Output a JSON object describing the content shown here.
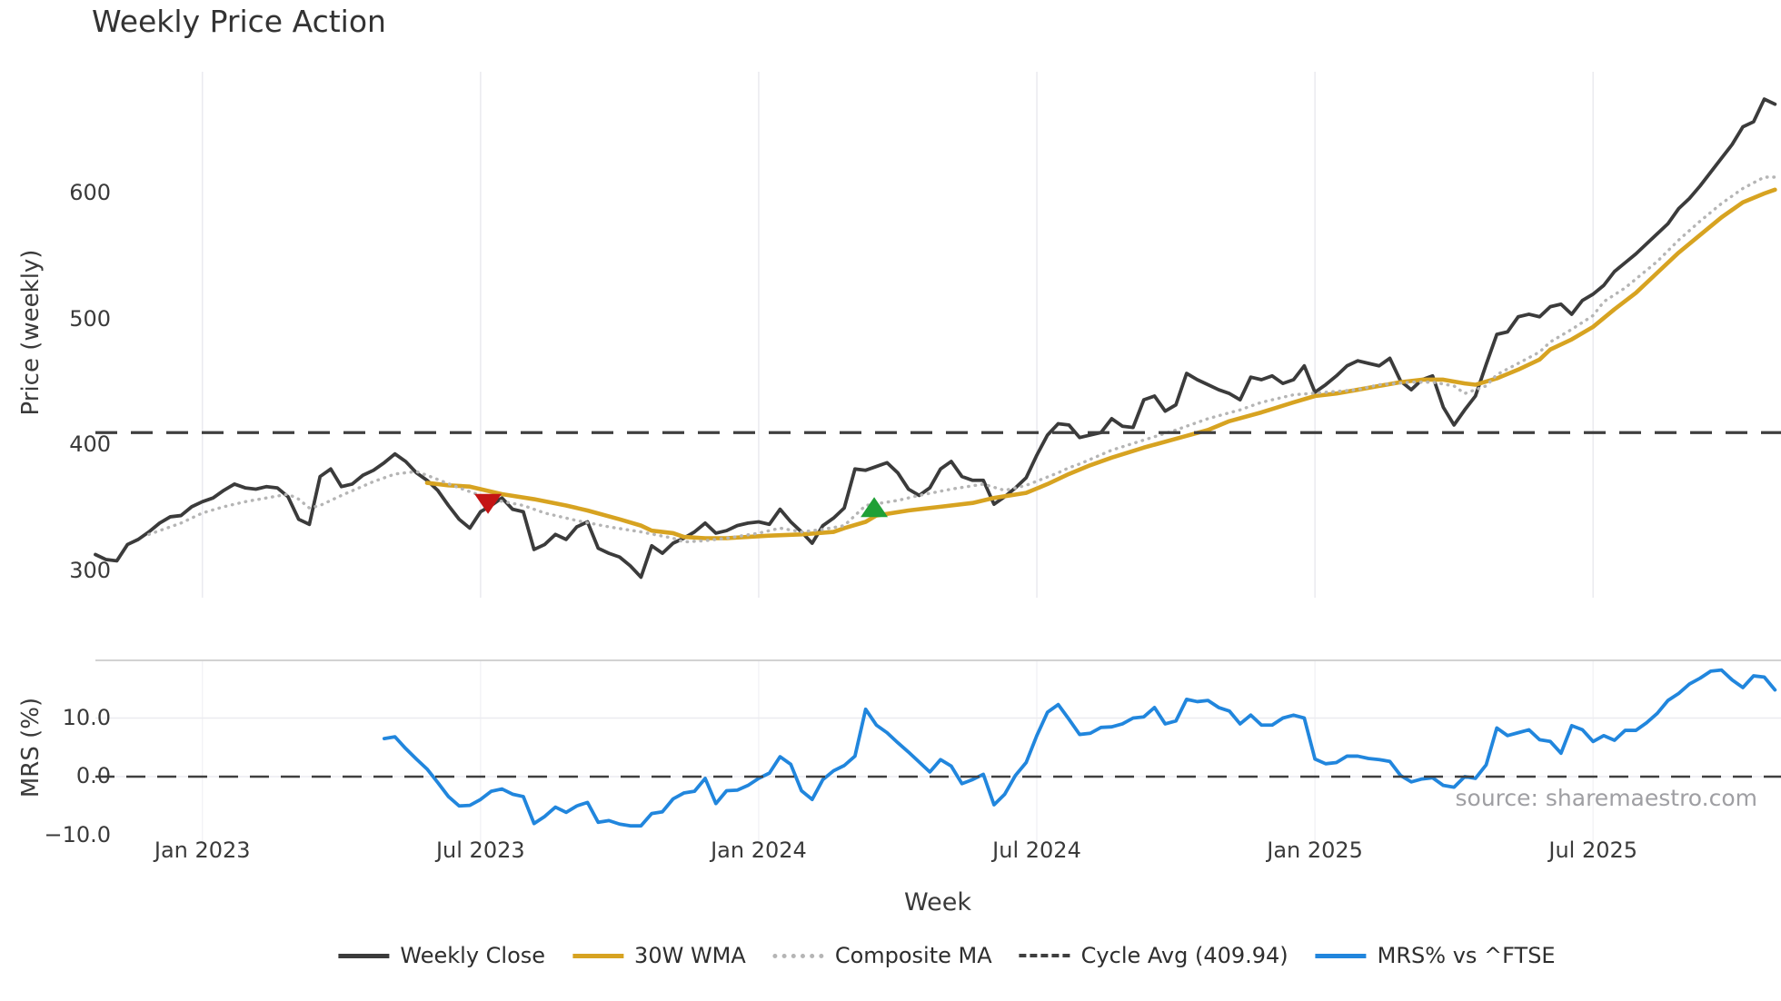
{
  "title": "Weekly Price Action",
  "watermark": "source: sharemaestro.com",
  "colors": {
    "weekly_close": "#3b3b3b",
    "wma30": "#d7a321",
    "composite_ma": "#b5b5b5",
    "cycle_avg": "#3f3f3f",
    "mrs": "#2186dd",
    "sell_marker": "#c41414",
    "buy_marker": "#1fa036",
    "grid": "#ebebf0",
    "panel_spine": "#cccccc"
  },
  "legend": {
    "items": [
      {
        "label": "Weekly Close",
        "style": "solid",
        "color": "#3b3b3b"
      },
      {
        "label": "30W WMA",
        "style": "solid",
        "color": "#d7a321"
      },
      {
        "label": "Composite MA",
        "style": "dotted",
        "color": "#b5b5b5"
      },
      {
        "label": "Cycle Avg (409.94)",
        "style": "dashed",
        "color": "#3f3f3f"
      },
      {
        "label": "MRS% vs ^FTSE",
        "style": "solid",
        "color": "#2186dd"
      }
    ]
  },
  "chart_data": {
    "type": "line",
    "title": "Weekly Price Action",
    "xlabel": "Week",
    "x_axis": {
      "tick_labels": [
        "Jan 2023",
        "Jul 2023",
        "Jan 2024",
        "Jul 2024",
        "Jan 2025",
        "Jul 2025"
      ],
      "tick_weeks": [
        10,
        36,
        62,
        88,
        114,
        140
      ],
      "weeks_total": 158
    },
    "price_axis": {
      "label": "Price (weekly)",
      "tick_values": [
        300,
        400,
        500,
        600
      ],
      "tick_labels": [
        "300",
        "400",
        "500",
        "600"
      ],
      "range": [
        279,
        697
      ],
      "grid": "vertical-only"
    },
    "mrs_axis": {
      "label": "MRS (%)",
      "tick_values": [
        10.0,
        0.0,
        -10.0
      ],
      "tick_labels": [
        "10.0",
        "0.0",
        "−10.0"
      ],
      "range": [
        -13.5,
        19.8
      ]
    },
    "cycle_avg_value": 409.94,
    "series": [
      {
        "name": "Weekly Close",
        "panel": "price",
        "style": "solid",
        "start_week": 0,
        "values": [
          313,
          309,
          308,
          321,
          325,
          331,
          338,
          343,
          344,
          351,
          355,
          358,
          364,
          369,
          366,
          365,
          367,
          366,
          359,
          341,
          337,
          375,
          381,
          367,
          369,
          376,
          380,
          386,
          393,
          387,
          378,
          372,
          364,
          352,
          341,
          334,
          347,
          352,
          358,
          349,
          347,
          317,
          321,
          329,
          325,
          335,
          339,
          318,
          314,
          311,
          304,
          295,
          320,
          314,
          322,
          326,
          331,
          338,
          330,
          332,
          336,
          338,
          339,
          337,
          349,
          339,
          331,
          322,
          336,
          342,
          350,
          381,
          380,
          383,
          386,
          378,
          365,
          360,
          366,
          381,
          387,
          375,
          372,
          372,
          353,
          359,
          366,
          374,
          392,
          408,
          417,
          416,
          406,
          408,
          410,
          421,
          415,
          414,
          436,
          439,
          427,
          432,
          457,
          452,
          448,
          444,
          441,
          436,
          454,
          452,
          455,
          449,
          452,
          463,
          442,
          448,
          455,
          463,
          467,
          465,
          463,
          469,
          451,
          444,
          452,
          455,
          430,
          416,
          428,
          439,
          464,
          488,
          490,
          502,
          504,
          502,
          510,
          512,
          504,
          515,
          520,
          527,
          538,
          545,
          552,
          560,
          568,
          576,
          588,
          596,
          606,
          617,
          628,
          639,
          653,
          657,
          675,
          671
        ]
      },
      {
        "name": "30W WMA",
        "panel": "price",
        "style": "solid",
        "points": [
          [
            31,
            370
          ],
          [
            33,
            368
          ],
          [
            35,
            367
          ],
          [
            38,
            361
          ],
          [
            41,
            357
          ],
          [
            44,
            352
          ],
          [
            46,
            348
          ],
          [
            49,
            341
          ],
          [
            51,
            336
          ],
          [
            52,
            332
          ],
          [
            54,
            330
          ],
          [
            55,
            327
          ],
          [
            57,
            326
          ],
          [
            59,
            326
          ],
          [
            61,
            327
          ],
          [
            63,
            328
          ],
          [
            66,
            329
          ],
          [
            69,
            331
          ],
          [
            70,
            334
          ],
          [
            72,
            339
          ],
          [
            73,
            344
          ],
          [
            76,
            348
          ],
          [
            79,
            351
          ],
          [
            82,
            354
          ],
          [
            84,
            358
          ],
          [
            87,
            362
          ],
          [
            89,
            369
          ],
          [
            91,
            377
          ],
          [
            93,
            384
          ],
          [
            95,
            390
          ],
          [
            98,
            398
          ],
          [
            101,
            405
          ],
          [
            104,
            412
          ],
          [
            106,
            419
          ],
          [
            109,
            426
          ],
          [
            112,
            434
          ],
          [
            114,
            439
          ],
          [
            116,
            441
          ],
          [
            118,
            444
          ],
          [
            120,
            447
          ],
          [
            122,
            450
          ],
          [
            124,
            452
          ],
          [
            126,
            452
          ],
          [
            128,
            449
          ],
          [
            129,
            448
          ],
          [
            131,
            453
          ],
          [
            133,
            460
          ],
          [
            135,
            468
          ],
          [
            136,
            476
          ],
          [
            138,
            484
          ],
          [
            140,
            494
          ],
          [
            142,
            508
          ],
          [
            144,
            521
          ],
          [
            146,
            537
          ],
          [
            148,
            553
          ],
          [
            150,
            567
          ],
          [
            152,
            581
          ],
          [
            154,
            593
          ],
          [
            156,
            600
          ],
          [
            157,
            603
          ]
        ]
      },
      {
        "name": "Composite MA",
        "panel": "price",
        "style": "dotted",
        "points": [
          [
            5,
            329
          ],
          [
            8,
            338
          ],
          [
            10,
            346
          ],
          [
            12,
            351
          ],
          [
            14,
            355
          ],
          [
            16,
            358
          ],
          [
            18,
            361
          ],
          [
            19,
            357
          ],
          [
            20,
            350
          ],
          [
            21,
            352
          ],
          [
            23,
            360
          ],
          [
            26,
            371
          ],
          [
            28,
            377
          ],
          [
            30,
            379
          ],
          [
            31,
            376
          ],
          [
            34,
            366
          ],
          [
            36,
            360
          ],
          [
            37,
            357
          ],
          [
            40,
            352
          ],
          [
            42,
            346
          ],
          [
            45,
            340
          ],
          [
            48,
            335
          ],
          [
            51,
            331
          ],
          [
            54,
            326
          ],
          [
            55,
            323
          ],
          [
            57,
            324
          ],
          [
            59,
            326
          ],
          [
            62,
            330
          ],
          [
            64,
            334
          ],
          [
            66,
            331
          ],
          [
            68,
            333
          ],
          [
            70,
            336
          ],
          [
            72,
            352
          ],
          [
            75,
            356
          ],
          [
            77,
            360
          ],
          [
            80,
            365
          ],
          [
            83,
            369
          ],
          [
            85,
            364
          ],
          [
            87,
            368
          ],
          [
            90,
            378
          ],
          [
            91,
            382
          ],
          [
            92,
            385
          ],
          [
            95,
            396
          ],
          [
            98,
            404
          ],
          [
            101,
            412
          ],
          [
            104,
            421
          ],
          [
            107,
            428
          ],
          [
            109,
            434
          ],
          [
            112,
            440
          ],
          [
            115,
            442
          ],
          [
            118,
            444
          ],
          [
            120,
            448
          ],
          [
            123,
            450
          ],
          [
            125,
            450
          ],
          [
            127,
            447
          ],
          [
            128,
            441
          ],
          [
            130,
            447
          ],
          [
            131,
            456
          ],
          [
            133,
            465
          ],
          [
            135,
            474
          ],
          [
            136,
            482
          ],
          [
            138,
            492
          ],
          [
            140,
            503
          ],
          [
            141,
            514
          ],
          [
            143,
            525
          ],
          [
            145,
            539
          ],
          [
            146,
            546
          ],
          [
            148,
            563
          ],
          [
            150,
            578
          ],
          [
            152,
            592
          ],
          [
            154,
            604
          ],
          [
            156,
            613
          ],
          [
            157,
            613
          ]
        ]
      },
      {
        "name": "Cycle Avg (409.94)",
        "panel": "price",
        "style": "dashed",
        "value": 409.94
      },
      {
        "name": "MRS% vs ^FTSE",
        "panel": "mrs",
        "style": "solid",
        "start_week": 27,
        "values": [
          6.5,
          6.8,
          4.8,
          3.0,
          1.3,
          -1.0,
          -3.4,
          -5.0,
          -4.9,
          -3.9,
          -2.5,
          -2.1,
          -3.0,
          -3.4,
          -8.0,
          -6.8,
          -5.2,
          -6.1,
          -5.0,
          -4.4,
          -7.8,
          -7.5,
          -8.1,
          -8.4,
          -8.4,
          -6.3,
          -6.0,
          -3.8,
          -2.8,
          -2.5,
          -0.3,
          -4.6,
          -2.4,
          -2.3,
          -1.5,
          -0.3,
          0.6,
          3.4,
          2.1,
          -2.4,
          -3.9,
          -0.5,
          1.0,
          1.9,
          3.5,
          11.5,
          8.8,
          7.5,
          5.8,
          4.2,
          2.5,
          0.8,
          2.9,
          1.8,
          -1.2,
          -0.5,
          0.4,
          -4.8,
          -3.0,
          0.2,
          2.4,
          7.0,
          11.0,
          12.3,
          9.8,
          7.2,
          7.4,
          8.4,
          8.5,
          9.0,
          10.0,
          10.2,
          11.8,
          9.0,
          9.5,
          13.2,
          12.8,
          13.0,
          11.8,
          11.2,
          9.0,
          10.5,
          8.8,
          8.8,
          10.0,
          10.5,
          10.0,
          3.0,
          2.2,
          2.4,
          3.5,
          3.5,
          3.1,
          2.9,
          2.6,
          0.2,
          -0.9,
          -0.4,
          -0.2,
          -1.5,
          -1.8,
          0.0,
          -0.3,
          2.0,
          8.3,
          7.0,
          7.5,
          8.0,
          6.3,
          6.0,
          4.0,
          8.7,
          8.0,
          6.0,
          7.0,
          6.2,
          7.9,
          7.9,
          9.2,
          10.8,
          13.0,
          14.2,
          15.8,
          16.8,
          18.0,
          18.2,
          16.5,
          15.2,
          17.2,
          17.0,
          14.8
        ]
      }
    ],
    "markers": [
      {
        "name": "sell-signal",
        "shape": "triangle-down",
        "week": 36.7,
        "price": 354
      },
      {
        "name": "buy-signal",
        "shape": "triangle-up",
        "week": 72.8,
        "price": 350
      }
    ],
    "legend_position": "bottom-center",
    "grid": true
  }
}
